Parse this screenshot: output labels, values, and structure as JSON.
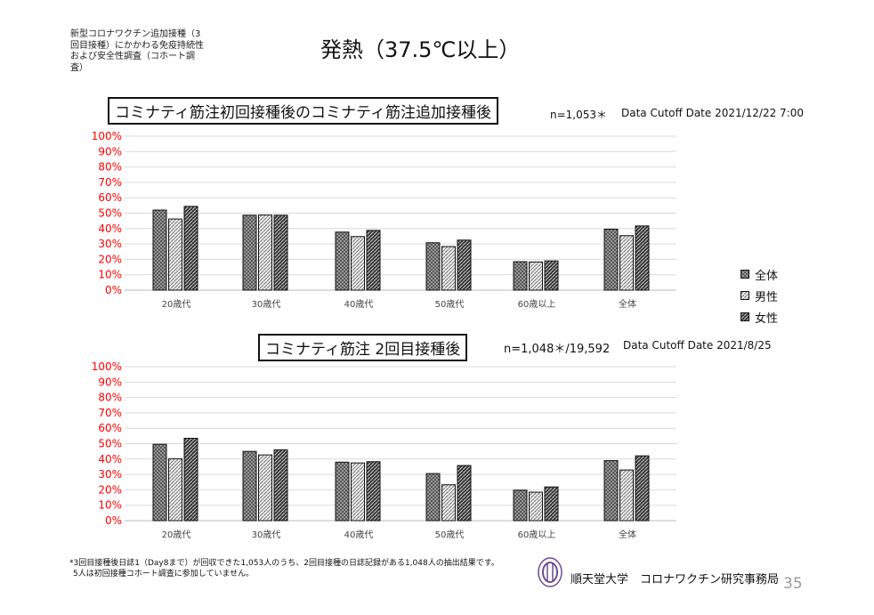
{
  "study_label": "新型コロナワクチン追加接種（3回目接種）にかかわる免疫持続性および安全性調査（コホート調査）",
  "title": "発熱（37.5℃以上）",
  "legend": [
    "全体",
    "男性",
    "女性"
  ],
  "footnote": [
    "*3回目接種後日誌1（Day8まで）が回収できた1,053人のうち、2回目接種の日誌記録がある1,048人の抽出結果です。",
    "5人は初回接種コホート調査に参加していません。"
  ],
  "organization": "順天堂大学　コロナワクチン研究事務局",
  "page_number": "35",
  "colors": {
    "axis_label": "#ff0000",
    "grid": "#d9d9d9"
  },
  "chart_data": [
    {
      "type": "bar",
      "title": "コミナティ筋注初回接種後のコミナティ筋注追加接種後",
      "n_label": "n=1,053＊",
      "cutoff": "Data Cutoff Date 2021/12/22 7:00",
      "categories": [
        "20歳代",
        "30歳代",
        "40歳代",
        "50歳代",
        "60歳以上",
        "全体"
      ],
      "yticks": [
        "0%",
        "10%",
        "20%",
        "30%",
        "40%",
        "50%",
        "60%",
        "70%",
        "80%",
        "90%",
        "100%"
      ],
      "ylim": [
        0,
        100
      ],
      "grid": true,
      "legend_position": "right",
      "series": [
        {
          "name": "全体",
          "values": [
            52,
            48.7,
            37.7,
            30.8,
            18.5,
            39.6
          ]
        },
        {
          "name": "男性",
          "values": [
            46.2,
            48.8,
            34.8,
            28.3,
            18.3,
            35.4
          ]
        },
        {
          "name": "女性",
          "values": [
            54.4,
            48.7,
            38.8,
            32.5,
            19,
            41.7
          ]
        }
      ]
    },
    {
      "type": "bar",
      "title": "コミナティ筋注 2回目接種後",
      "n_label": "n=1,048＊/19,592",
      "cutoff": "Data Cutoff Date 2021/8/25",
      "categories": [
        "20歳代",
        "30歳代",
        "40歳代",
        "50歳代",
        "60歳以上",
        "全体"
      ],
      "yticks": [
        "0%",
        "10%",
        "20%",
        "30%",
        "40%",
        "50%",
        "60%",
        "70%",
        "80%",
        "90%",
        "100%"
      ],
      "ylim": [
        0,
        100
      ],
      "grid": true,
      "legend_position": "right",
      "series": [
        {
          "name": "全体",
          "values": [
            49.6,
            45,
            38,
            30.6,
            19.8,
            39
          ]
        },
        {
          "name": "男性",
          "values": [
            40.2,
            42.7,
            37.5,
            23.3,
            18.5,
            32.9
          ]
        },
        {
          "name": "女性",
          "values": [
            53.5,
            46,
            38.3,
            35.8,
            21.9,
            42.1
          ]
        }
      ]
    }
  ]
}
